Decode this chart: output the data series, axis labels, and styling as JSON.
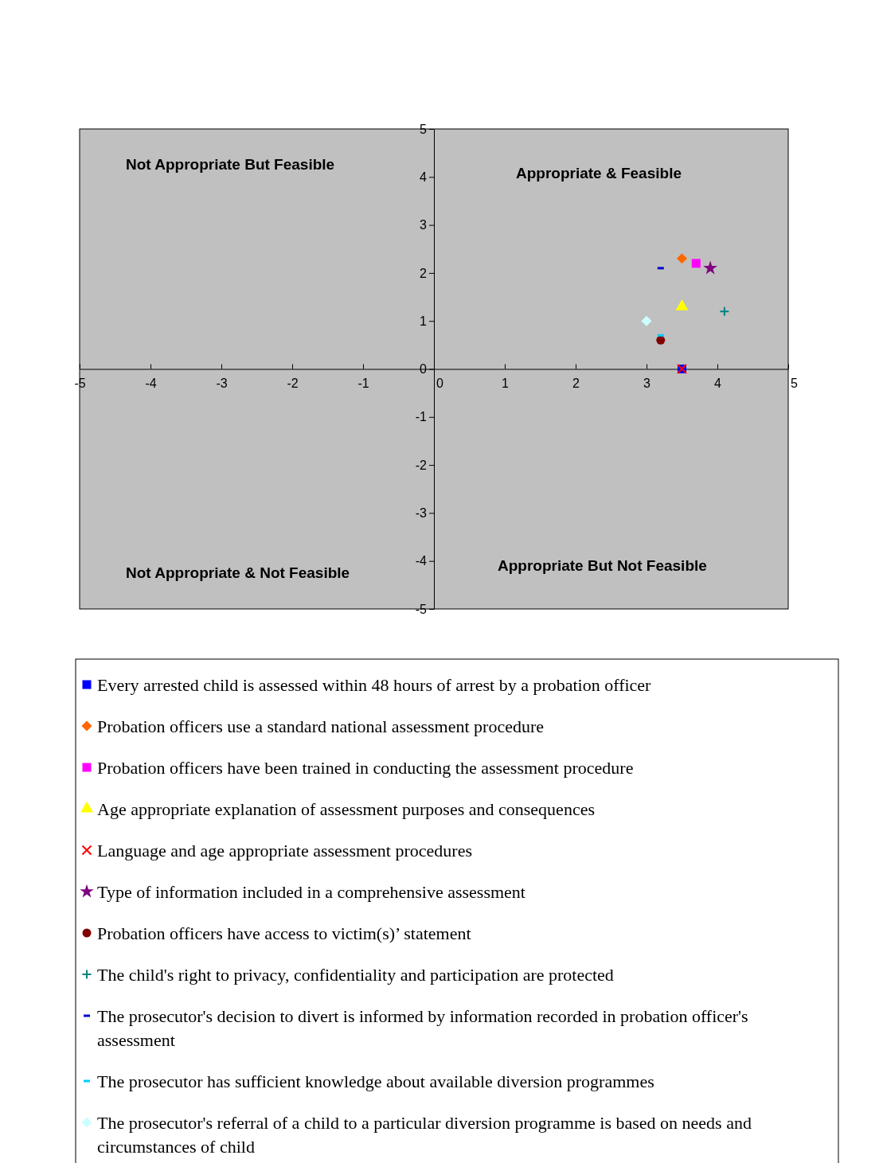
{
  "chart_data": {
    "type": "scatter",
    "xlim": [
      -5,
      5
    ],
    "ylim": [
      -5,
      5
    ],
    "xticks": [
      -5,
      -4,
      -3,
      -2,
      -1,
      0,
      1,
      2,
      3,
      4,
      5
    ],
    "yticks": [
      -5,
      -4,
      -3,
      -2,
      -1,
      0,
      1,
      2,
      3,
      4,
      5
    ],
    "grid": false,
    "legend": "bottom",
    "annotations": [
      "Not Appropriate But Feasible",
      "Appropriate & Feasible",
      "Not Appropriate & Not Feasible",
      "Appropriate But Not  Feasible"
    ],
    "series": [
      {
        "name": "Every arrested child is assessed within 48 hours of arrest by a probation officer",
        "color": "#0000ff",
        "marker": "square",
        "x": [
          3.5
        ],
        "values": [
          0
        ]
      },
      {
        "name": "Probation officers use a standard national assessment procedure",
        "color": "#ff6600",
        "marker": "diamond",
        "x": [
          3.5
        ],
        "values": [
          2.3
        ]
      },
      {
        "name": "Probation officers have been trained in conducting the assessment procedure",
        "color": "#ff00ff",
        "marker": "square",
        "x": [
          3.7
        ],
        "values": [
          2.2
        ]
      },
      {
        "name": "Age appropriate explanation of assessment purposes and consequences",
        "color": "#ffff00",
        "marker": "triangle",
        "x": [
          3.5
        ],
        "values": [
          1.3
        ]
      },
      {
        "name": "Language and age appropriate assessment procedures",
        "color": "#ff0000",
        "marker": "cross",
        "x": [
          3.5
        ],
        "values": [
          0
        ]
      },
      {
        "name": "Type of information included in a comprehensive assessment",
        "color": "#800080",
        "marker": "star",
        "x": [
          3.9
        ],
        "values": [
          2.1
        ]
      },
      {
        "name": "Probation officers have access to victim(s)’ statement",
        "color": "#800000",
        "marker": "circle",
        "x": [
          3.2
        ],
        "values": [
          0.6
        ]
      },
      {
        "name": "The child's right to privacy, confidentiality and participation are protected",
        "color": "#008080",
        "marker": "plus",
        "x": [
          4.1
        ],
        "values": [
          1.2
        ]
      },
      {
        "name": "The prosecutor's decision to divert is informed by information recorded in probation officer's assessment",
        "color": "#0000cc",
        "x": [
          3.2
        ],
        "values": [
          2.1
        ]
      },
      {
        "name": "The prosecutor has sufficient knowledge about available diversion programmes",
        "color": "#00ccff",
        "x": [
          3.2
        ],
        "values": [
          0.7
        ]
      },
      {
        "name": "The prosecutor's referral of a child to a particular diversion programme is based on needs and circumstances of child",
        "color": "#ccffff",
        "marker": "diamond",
        "x": [
          3.0
        ],
        "values": [
          1.0
        ]
      }
    ]
  }
}
